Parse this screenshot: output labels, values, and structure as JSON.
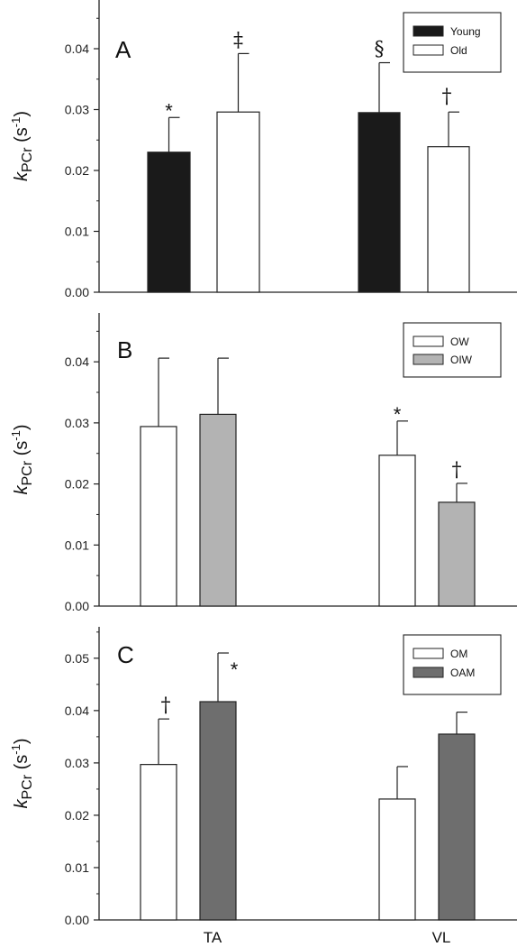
{
  "chart_data": [
    {
      "type": "bar",
      "panel_label": "A",
      "ylabel_main": "k",
      "ylabel_sub": "PCr",
      "ylabel_unit": " (s",
      "ylabel_exp": "-1",
      "ylabel_close": ")",
      "ylim": [
        0,
        0.048
      ],
      "yticks": [
        "0.00",
        "0.01",
        "0.02",
        "0.03",
        "0.04"
      ],
      "ytick_values": [
        0,
        0.01,
        0.02,
        0.03,
        0.04
      ],
      "categories": [
        "TA",
        "VL"
      ],
      "series": [
        {
          "name": "Young",
          "color": "#1a1a1a",
          "values": [
            0.023,
            0.0295
          ],
          "errors": [
            0.0057,
            0.0082
          ],
          "annotations": [
            "*",
            "§"
          ]
        },
        {
          "name": "Old",
          "color": "#ffffff",
          "values": [
            0.0296,
            0.0239
          ],
          "errors": [
            0.0096,
            0.0057
          ],
          "annotations": [
            "‡",
            "†"
          ]
        }
      ],
      "legend_position": "top-right"
    },
    {
      "type": "bar",
      "panel_label": "B",
      "ylabel_main": "k",
      "ylabel_sub": "PCr",
      "ylabel_unit": " (s",
      "ylabel_exp": "-1",
      "ylabel_close": ")",
      "ylim": [
        0,
        0.048
      ],
      "yticks": [
        "0.00",
        "0.01",
        "0.02",
        "0.03",
        "0.04"
      ],
      "ytick_values": [
        0,
        0.01,
        0.02,
        0.03,
        0.04
      ],
      "categories": [
        "TA",
        "VL"
      ],
      "series": [
        {
          "name": "OW",
          "color": "#ffffff",
          "values": [
            0.0294,
            0.0247
          ],
          "errors": [
            0.0112,
            0.0056
          ],
          "annotations": [
            "",
            "*"
          ]
        },
        {
          "name": "OIW",
          "color": "#b3b3b3",
          "values": [
            0.0314,
            0.017
          ],
          "errors": [
            0.0092,
            0.0031
          ],
          "annotations": [
            "",
            "†"
          ]
        }
      ],
      "legend_position": "top-right"
    },
    {
      "type": "bar",
      "panel_label": "C",
      "ylabel_main": "k",
      "ylabel_sub": "PCr",
      "ylabel_unit": " (s",
      "ylabel_exp": "-1",
      "ylabel_close": ")",
      "ylim": [
        0,
        0.056
      ],
      "yticks": [
        "0.00",
        "0.01",
        "0.02",
        "0.03",
        "0.04",
        "0.05"
      ],
      "ytick_values": [
        0,
        0.01,
        0.02,
        0.03,
        0.04,
        0.05
      ],
      "categories": [
        "TA",
        "VL"
      ],
      "series": [
        {
          "name": "OM",
          "color": "#ffffff",
          "values": [
            0.0297,
            0.0231
          ],
          "errors": [
            0.0087,
            0.0062
          ],
          "annotations": [
            "†",
            ""
          ]
        },
        {
          "name": "OAM",
          "color": "#6e6e6e",
          "values": [
            0.0417,
            0.0355
          ],
          "errors": [
            0.0093,
            0.0042
          ],
          "annotations": [
            "*",
            ""
          ]
        }
      ],
      "legend_position": "top-right"
    }
  ],
  "x_categories": [
    "TA",
    "VL"
  ]
}
